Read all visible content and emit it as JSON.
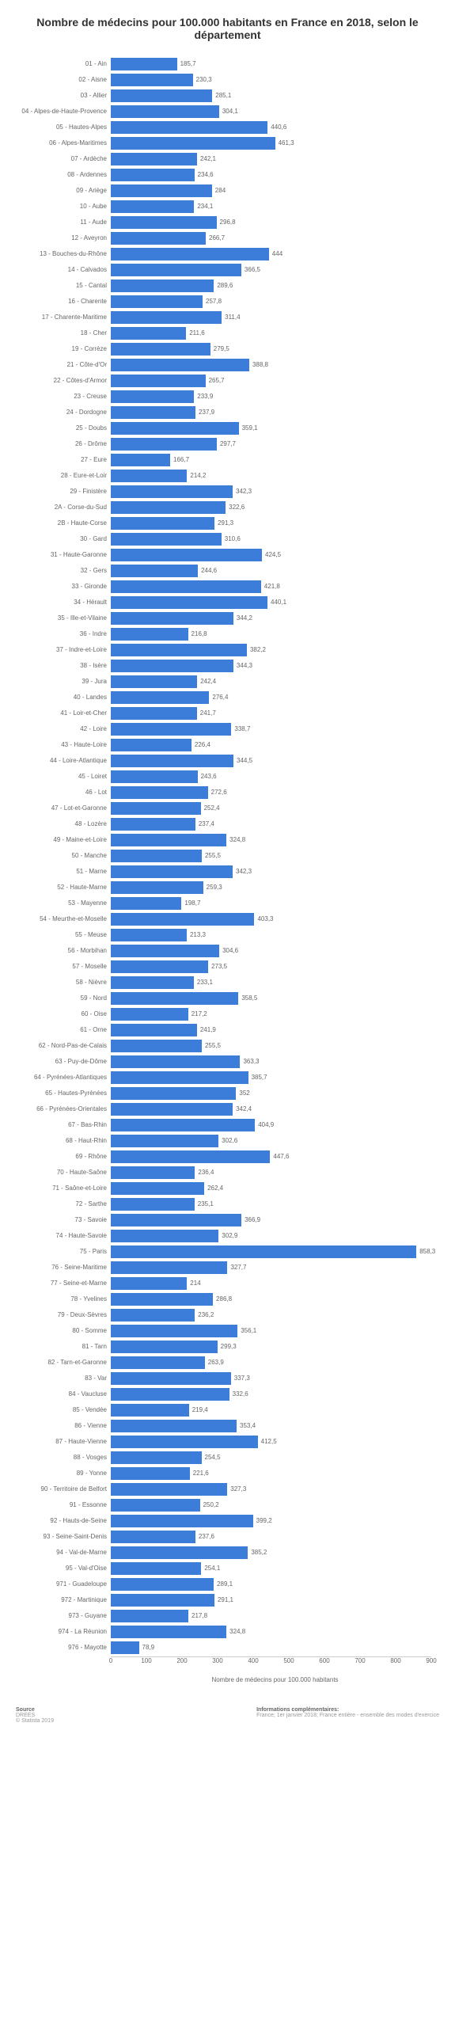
{
  "chart": {
    "type": "bar",
    "orientation": "horizontal",
    "title": "Nombre de médecins pour 100.000 habitants en France en 2018, selon le département",
    "xlabel": "Nombre de médecins pour 100.000 habitants",
    "xlim": [
      0,
      900
    ],
    "xtick_step": 100,
    "xticks": [
      0,
      100,
      200,
      300,
      400,
      500,
      600,
      700,
      800,
      900
    ],
    "bar_color": "#3b7dd8",
    "background_color": "#ffffff",
    "grid_color": "#f0f0f0",
    "label_color": "#666666",
    "title_fontsize": 14,
    "label_fontsize": 8,
    "items": [
      {
        "label": "01 - Ain",
        "value": 185.7
      },
      {
        "label": "02 - Aisne",
        "value": 230.3
      },
      {
        "label": "03 - Allier",
        "value": 285.1
      },
      {
        "label": "04 - Alpes-de-Haute-Provence",
        "value": 304.1
      },
      {
        "label": "05 - Hautes-Alpes",
        "value": 440.6
      },
      {
        "label": "06 - Alpes-Maritimes",
        "value": 461.3
      },
      {
        "label": "07 - Ardèche",
        "value": 242.1
      },
      {
        "label": "08 - Ardennes",
        "value": 234.6
      },
      {
        "label": "09 - Ariège",
        "value": 284
      },
      {
        "label": "10 - Aube",
        "value": 234.1
      },
      {
        "label": "11 - Aude",
        "value": 296.8
      },
      {
        "label": "12 - Aveyron",
        "value": 266.7
      },
      {
        "label": "13 - Bouches-du-Rhône",
        "value": 444
      },
      {
        "label": "14 - Calvados",
        "value": 366.5
      },
      {
        "label": "15 - Cantal",
        "value": 289.6
      },
      {
        "label": "16 - Charente",
        "value": 257.8
      },
      {
        "label": "17 - Charente-Maritime",
        "value": 311.4
      },
      {
        "label": "18 - Cher",
        "value": 211.6
      },
      {
        "label": "19 - Corrèze",
        "value": 279.5
      },
      {
        "label": "21 - Côte-d'Or",
        "value": 388.8
      },
      {
        "label": "22 - Côtes-d'Armor",
        "value": 265.7
      },
      {
        "label": "23 - Creuse",
        "value": 233.9
      },
      {
        "label": "24 - Dordogne",
        "value": 237.9
      },
      {
        "label": "25 - Doubs",
        "value": 359.1
      },
      {
        "label": "26 - Drôme",
        "value": 297.7
      },
      {
        "label": "27 - Eure",
        "value": 166.7
      },
      {
        "label": "28 - Eure-et-Loir",
        "value": 214.2
      },
      {
        "label": "29 - Finistère",
        "value": 342.3
      },
      {
        "label": "2A - Corse-du-Sud",
        "value": 322.6
      },
      {
        "label": "2B - Haute-Corse",
        "value": 291.3
      },
      {
        "label": "30 - Gard",
        "value": 310.6
      },
      {
        "label": "31 - Haute-Garonne",
        "value": 424.5
      },
      {
        "label": "32 - Gers",
        "value": 244.6
      },
      {
        "label": "33 - Gironde",
        "value": 421.8
      },
      {
        "label": "34 - Hérault",
        "value": 440.1
      },
      {
        "label": "35 - Ille-et-Vilaine",
        "value": 344.2
      },
      {
        "label": "36 - Indre",
        "value": 216.8
      },
      {
        "label": "37 - Indre-et-Loire",
        "value": 382.2
      },
      {
        "label": "38 - Isère",
        "value": 344.3
      },
      {
        "label": "39 - Jura",
        "value": 242.4
      },
      {
        "label": "40 - Landes",
        "value": 276.4
      },
      {
        "label": "41 - Loir-et-Cher",
        "value": 241.7
      },
      {
        "label": "42 - Loire",
        "value": 338.7
      },
      {
        "label": "43 - Haute-Loire",
        "value": 226.4
      },
      {
        "label": "44 - Loire-Atlantique",
        "value": 344.5
      },
      {
        "label": "45 - Loiret",
        "value": 243.6
      },
      {
        "label": "46 - Lot",
        "value": 272.6
      },
      {
        "label": "47 - Lot-et-Garonne",
        "value": 252.4
      },
      {
        "label": "48 - Lozère",
        "value": 237.4
      },
      {
        "label": "49 - Maine-et-Loire",
        "value": 324.8
      },
      {
        "label": "50 - Manche",
        "value": 255.5
      },
      {
        "label": "51 - Marne",
        "value": 342.3
      },
      {
        "label": "52 - Haute-Marne",
        "value": 259.3
      },
      {
        "label": "53 - Mayenne",
        "value": 198.7
      },
      {
        "label": "54 - Meurthe-et-Moselle",
        "value": 403.3
      },
      {
        "label": "55 - Meuse",
        "value": 213.3
      },
      {
        "label": "56 - Morbihan",
        "value": 304.6
      },
      {
        "label": "57 - Moselle",
        "value": 273.5
      },
      {
        "label": "58 - Nièvre",
        "value": 233.1
      },
      {
        "label": "59 - Nord",
        "value": 358.5
      },
      {
        "label": "60 - Oise",
        "value": 217.2
      },
      {
        "label": "61 - Orne",
        "value": 241.9
      },
      {
        "label": "62 - Nord-Pas-de-Calais",
        "value": 255.5
      },
      {
        "label": "63 - Puy-de-Dôme",
        "value": 363.3
      },
      {
        "label": "64 - Pyrénées-Atlantiques",
        "value": 385.7
      },
      {
        "label": "65 - Hautes-Pyrénées",
        "value": 352
      },
      {
        "label": "66 - Pyrénées-Orientales",
        "value": 342.4
      },
      {
        "label": "67 - Bas-Rhin",
        "value": 404.9
      },
      {
        "label": "68 - Haut-Rhin",
        "value": 302.6
      },
      {
        "label": "69 - Rhône",
        "value": 447.6
      },
      {
        "label": "70 - Haute-Saône",
        "value": 236.4
      },
      {
        "label": "71 - Saône-et-Loire",
        "value": 262.4
      },
      {
        "label": "72 - Sarthe",
        "value": 235.1
      },
      {
        "label": "73 - Savoie",
        "value": 366.9
      },
      {
        "label": "74 - Haute-Savoie",
        "value": 302.9
      },
      {
        "label": "75 - Paris",
        "value": 858.3
      },
      {
        "label": "76 - Seine-Maritime",
        "value": 327.7
      },
      {
        "label": "77 - Seine-et-Marne",
        "value": 214
      },
      {
        "label": "78 - Yvelines",
        "value": 286.8
      },
      {
        "label": "79 - Deux-Sèvres",
        "value": 236.2
      },
      {
        "label": "80 - Somme",
        "value": 356.1
      },
      {
        "label": "81 - Tarn",
        "value": 299.3
      },
      {
        "label": "82 - Tarn-et-Garonne",
        "value": 263.9
      },
      {
        "label": "83 - Var",
        "value": 337.3
      },
      {
        "label": "84 - Vaucluse",
        "value": 332.6
      },
      {
        "label": "85 - Vendée",
        "value": 219.4
      },
      {
        "label": "86 - Vienne",
        "value": 353.4
      },
      {
        "label": "87 - Haute-Vienne",
        "value": 412.5
      },
      {
        "label": "88 - Vosges",
        "value": 254.5
      },
      {
        "label": "89 - Yonne",
        "value": 221.6
      },
      {
        "label": "90 - Territoire de Belfort",
        "value": 327.3
      },
      {
        "label": "91 - Essonne",
        "value": 250.2
      },
      {
        "label": "92 - Hauts-de-Seine",
        "value": 399.2
      },
      {
        "label": "93 - Seine-Saint-Denis",
        "value": 237.6
      },
      {
        "label": "94 - Val-de-Marne",
        "value": 385.2
      },
      {
        "label": "95 - Val-d'Oise",
        "value": 254.1
      },
      {
        "label": "971 - Guadeloupe",
        "value": 289.1
      },
      {
        "label": "972 - Martinique",
        "value": 291.1
      },
      {
        "label": "973 - Guyane",
        "value": 217.8
      },
      {
        "label": "974 - La Réunion",
        "value": 324.8
      },
      {
        "label": "976 - Mayotte",
        "value": 78.9
      }
    ]
  },
  "footer": {
    "left_title": "Source",
    "left_line1": "DREES",
    "left_line2": "© Statista 2019",
    "right_title": "Informations complémentaires:",
    "right_text": "France; 1er janvier 2018; France entière - ensemble des modes d'exercice"
  }
}
